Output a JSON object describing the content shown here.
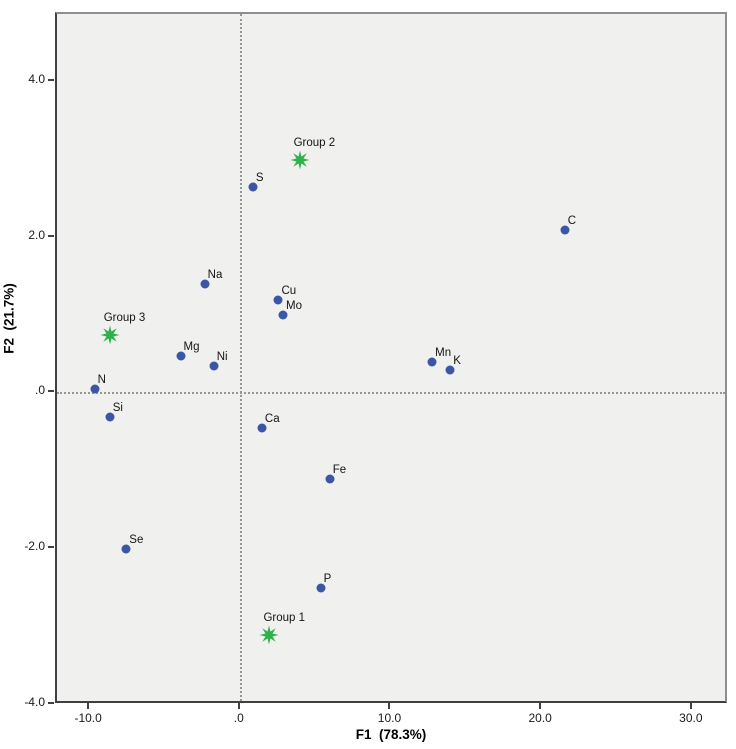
{
  "chart_data": {
    "type": "scatter",
    "title": "",
    "xlabel": "F1  (78.3%)",
    "ylabel": "F2  (21.7%)",
    "grid": "off",
    "legend": "none",
    "x_axis": {
      "min": -12.2,
      "max": 32.4,
      "ticks": [
        {
          "value": -10,
          "label": "-10.0"
        },
        {
          "value": 0,
          "label": ".0"
        },
        {
          "value": 10,
          "label": "10.0"
        },
        {
          "value": 20,
          "label": "20.0"
        },
        {
          "value": 30,
          "label": "30.0"
        }
      ]
    },
    "y_axis": {
      "min": -4.0,
      "max": 4.87,
      "ticks": [
        {
          "value": 4,
          "label": "4.0"
        },
        {
          "value": 2,
          "label": "2.0"
        },
        {
          "value": 0,
          "label": ".0"
        },
        {
          "value": -2,
          "label": "-2.0"
        },
        {
          "value": -4,
          "label": "-4.0"
        }
      ]
    },
    "reference_lines": {
      "x": 0,
      "y": 0
    },
    "series": [
      {
        "name": "elements",
        "marker": "circle",
        "color": "#3a56a5",
        "points": [
          {
            "label": "N",
            "x": -9.7,
            "y": 0.05
          },
          {
            "label": "Si",
            "x": -8.7,
            "y": -0.3
          },
          {
            "label": "Se",
            "x": -7.6,
            "y": -2.0
          },
          {
            "label": "Mg",
            "x": -4.0,
            "y": 0.48
          },
          {
            "label": "Na",
            "x": -2.4,
            "y": 1.4
          },
          {
            "label": "Ni",
            "x": -1.8,
            "y": 0.35
          },
          {
            "label": "S",
            "x": 0.8,
            "y": 2.65
          },
          {
            "label": "Ca",
            "x": 1.4,
            "y": -0.45
          },
          {
            "label": "Cu",
            "x": 2.5,
            "y": 1.2
          },
          {
            "label": "Mo",
            "x": 2.8,
            "y": 1.0
          },
          {
            "label": "P",
            "x": 5.3,
            "y": -2.5
          },
          {
            "label": "Fe",
            "x": 5.9,
            "y": -1.1
          },
          {
            "label": "Mn",
            "x": 12.7,
            "y": 0.4
          },
          {
            "label": "K",
            "x": 13.9,
            "y": 0.3
          },
          {
            "label": "C",
            "x": 21.5,
            "y": 2.1
          }
        ]
      },
      {
        "name": "groups",
        "marker": "star8",
        "color": "#2db14b",
        "points": [
          {
            "label": "Group 1",
            "x": 1.9,
            "y": -3.1
          },
          {
            "label": "Group 2",
            "x": 3.9,
            "y": 3.0
          },
          {
            "label": "Group 3",
            "x": -8.7,
            "y": 0.75
          }
        ]
      }
    ]
  },
  "style": {
    "plot_background": "#f0f0ef",
    "frame_color_light": "#8e8e8e",
    "axis_color_dark": "#404040",
    "reference_line_color": "#969696",
    "point_color": "#3a56a5",
    "group_color": "#2db14b",
    "text_color": "#141414"
  }
}
